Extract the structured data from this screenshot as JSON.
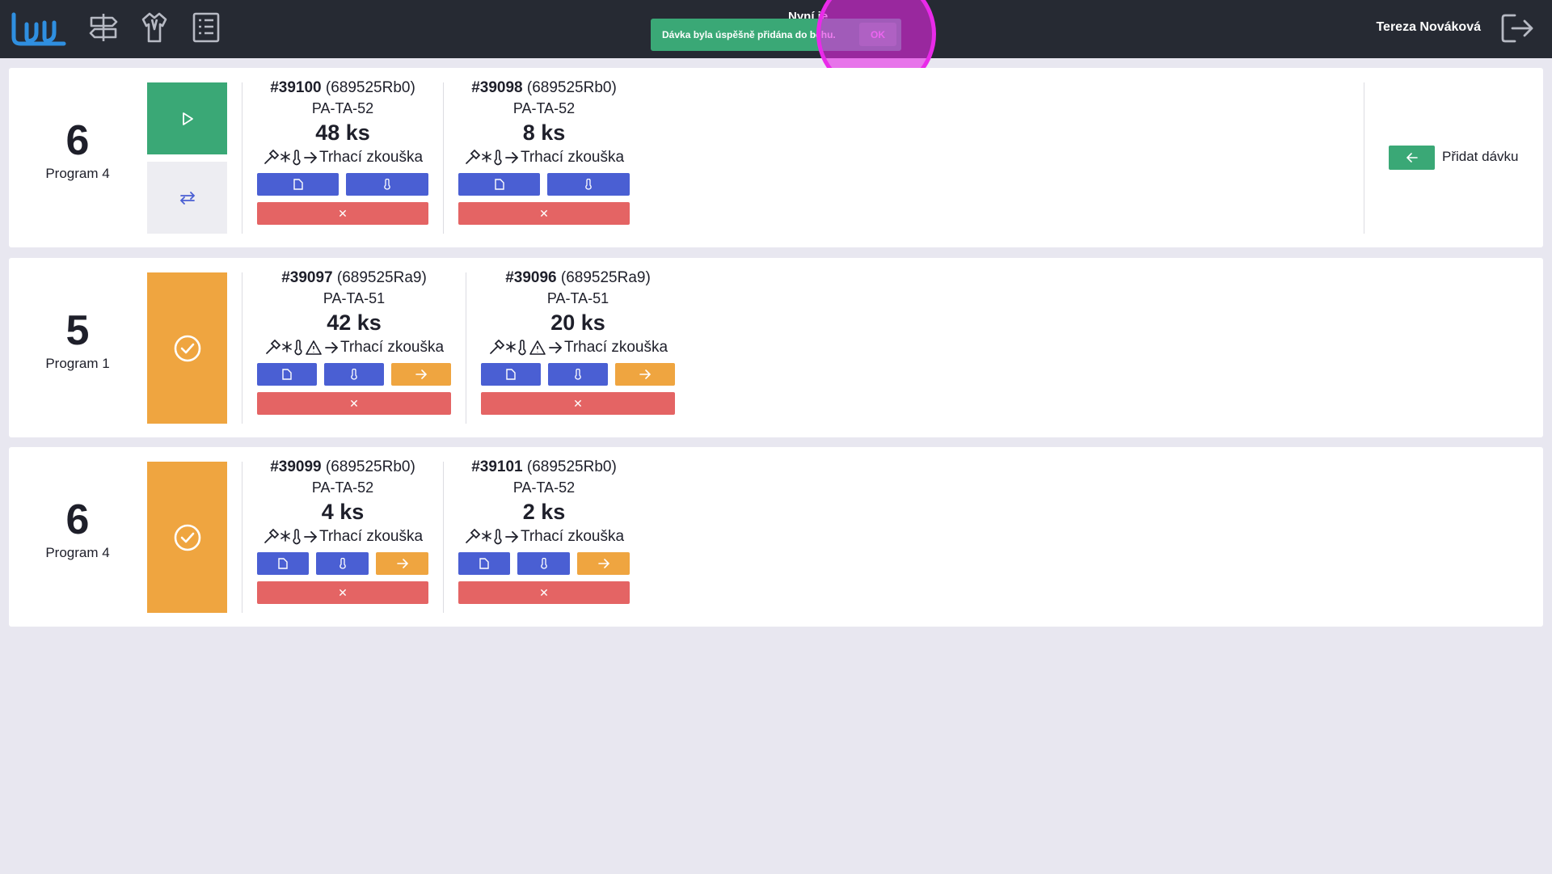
{
  "topbar": {
    "center_title": "Nyní je",
    "user_name": "Tereza Nováková",
    "nav_icons": [
      "logo-icon",
      "signpost-icon",
      "shirt-icon",
      "list-icon",
      "logout-icon"
    ]
  },
  "toast": {
    "message": "Dávka byla úspěšně přidána do běhu.",
    "ok_label": "OK"
  },
  "colors": {
    "topbar": "#262a33",
    "green": "#3aa876",
    "orange": "#efa540",
    "blue": "#4a5fd3",
    "red": "#e46464",
    "page_bg": "#e8e7f0"
  },
  "add_batch_label": "Přidat dávku",
  "rows": [
    {
      "number": "6",
      "program": "Program 4",
      "state": "running",
      "batches": [
        {
          "id": "#39100",
          "ref": "(689525Rb0)",
          "code": "PA-TA-52",
          "qty": "48 ks",
          "route": "Trhací zkouška",
          "warning": false
        },
        {
          "id": "#39098",
          "ref": "(689525Rb0)",
          "code": "PA-TA-52",
          "qty": "8 ks",
          "route": "Trhací zkouška",
          "warning": false
        }
      ]
    },
    {
      "number": "5",
      "program": "Program 1",
      "state": "done",
      "batches": [
        {
          "id": "#39097",
          "ref": "(689525Ra9)",
          "code": "PA-TA-51",
          "qty": "42 ks",
          "route": "Trhací zkouška",
          "warning": true
        },
        {
          "id": "#39096",
          "ref": "(689525Ra9)",
          "code": "PA-TA-51",
          "qty": "20 ks",
          "route": "Trhací zkouška",
          "warning": true
        }
      ]
    },
    {
      "number": "6",
      "program": "Program 4",
      "state": "done",
      "batches": [
        {
          "id": "#39099",
          "ref": "(689525Rb0)",
          "code": "PA-TA-52",
          "qty": "4 ks",
          "route": "Trhací zkouška",
          "warning": false
        },
        {
          "id": "#39101",
          "ref": "(689525Rb0)",
          "code": "PA-TA-52",
          "qty": "2 ks",
          "route": "Trhací zkouška",
          "warning": false
        }
      ]
    }
  ]
}
